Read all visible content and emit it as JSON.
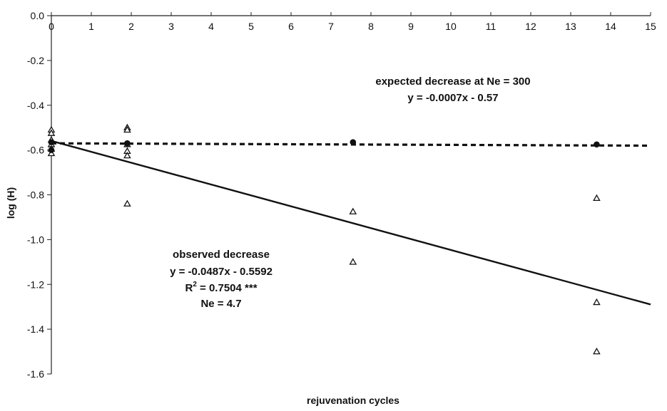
{
  "chart_data": {
    "type": "scatter",
    "title": "",
    "xlabel": "rejuvenation cycles",
    "ylabel": "log (H)",
    "xlim": [
      0,
      15
    ],
    "ylim": [
      -1.6,
      0.0
    ],
    "x_ticks": [
      "0",
      "1",
      "2",
      "3",
      "4",
      "5",
      "6",
      "7",
      "8",
      "9",
      "10",
      "11",
      "12",
      "13",
      "14",
      "15"
    ],
    "y_ticks": [
      "0.0",
      "-0.2",
      "-0.4",
      "-0.6",
      "-0.8",
      "-1.0",
      "-1.2",
      "-1.4",
      "-1.6"
    ],
    "grid": false,
    "series": [
      {
        "marker": "triangle",
        "points": [
          [
            0,
            -0.51
          ],
          [
            0,
            -0.525
          ],
          [
            0,
            -0.555
          ],
          [
            0,
            -0.575
          ],
          [
            0,
            -0.595
          ],
          [
            0,
            -0.615
          ],
          [
            1.9,
            -0.5
          ],
          [
            1.9,
            -0.51
          ],
          [
            1.9,
            -0.575
          ],
          [
            1.9,
            -0.605
          ],
          [
            1.9,
            -0.625
          ],
          [
            1.9,
            -0.84
          ],
          [
            7.55,
            -0.875
          ],
          [
            7.55,
            -1.1
          ],
          [
            13.65,
            -0.815
          ],
          [
            13.65,
            -1.28
          ],
          [
            13.65,
            -1.5
          ]
        ]
      },
      {
        "marker": "circle",
        "points": [
          [
            0,
            -0.565
          ],
          [
            0,
            -0.6
          ],
          [
            1.9,
            -0.57
          ],
          [
            7.55,
            -0.565
          ],
          [
            13.65,
            -0.575
          ]
        ]
      }
    ],
    "trendlines": [
      {
        "style": "dashed",
        "slope": -0.0007,
        "intercept": -0.57,
        "x_range": [
          0,
          15
        ]
      },
      {
        "style": "solid",
        "slope": -0.0487,
        "intercept": -0.5592,
        "x_range": [
          0,
          15
        ]
      }
    ],
    "annotations": {
      "expected": {
        "line1": "expected decrease at Ne = 300",
        "line2": "y = -0.0007x - 0.57"
      },
      "observed": {
        "line1": "observed decrease",
        "line2": "y = -0.0487x - 0.5592",
        "r2_prefix": "R",
        "r2_sup": "2",
        "r2_rest": " = 0.7504 ***",
        "line4": "Ne = 4.7"
      }
    }
  }
}
